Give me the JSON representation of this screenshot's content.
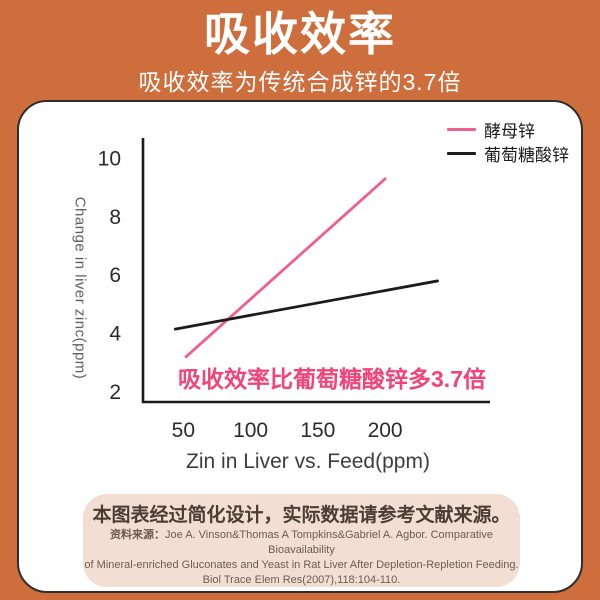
{
  "page": {
    "bg_color": "#CD6E3C",
    "title": "吸收效率",
    "subtitle": "吸收效率为传统合成锌的3.7倍"
  },
  "chart_data": {
    "type": "line",
    "xlabel": "Zin in Liver vs. Feed(ppm)",
    "ylabel": "Change in liver zinc(ppm)",
    "xticks": [
      50,
      100,
      150,
      200
    ],
    "yticks": [
      2,
      4,
      6,
      8,
      10
    ],
    "xlim": [
      20,
      278
    ],
    "ylim": [
      1.65,
      10.7
    ],
    "grid": false,
    "legend_position": "top-right",
    "axis_color": "#1B1B1B",
    "series": [
      {
        "name": "酵母锌",
        "color": "#EF5F8D",
        "points": [
          [
            52,
            3.2
          ],
          [
            200,
            9.3
          ]
        ]
      },
      {
        "name": "葡萄糖酸锌",
        "color": "#1C1C1C",
        "points": [
          [
            44,
            4.15
          ],
          [
            239,
            5.8
          ]
        ]
      }
    ],
    "annotation": {
      "text": "吸收效率比葡萄糖酸锌多3.7倍",
      "color": "#F14479"
    }
  },
  "footnote": {
    "main": "本图表经过简化设计，实际数据请参考文献来源。",
    "source_label": "资料来源：",
    "source_lines": [
      "Joe A. Vinson&Thomas A Tompkins&Gabriel A. Agbor. Comparative Bioavailability",
      "of Mineral-enriched Gluconates and Yeast in Rat Liver After Depletion-Repletion Feeding.",
      "Biol Trace Elem Res(2007),118:104-110."
    ]
  }
}
